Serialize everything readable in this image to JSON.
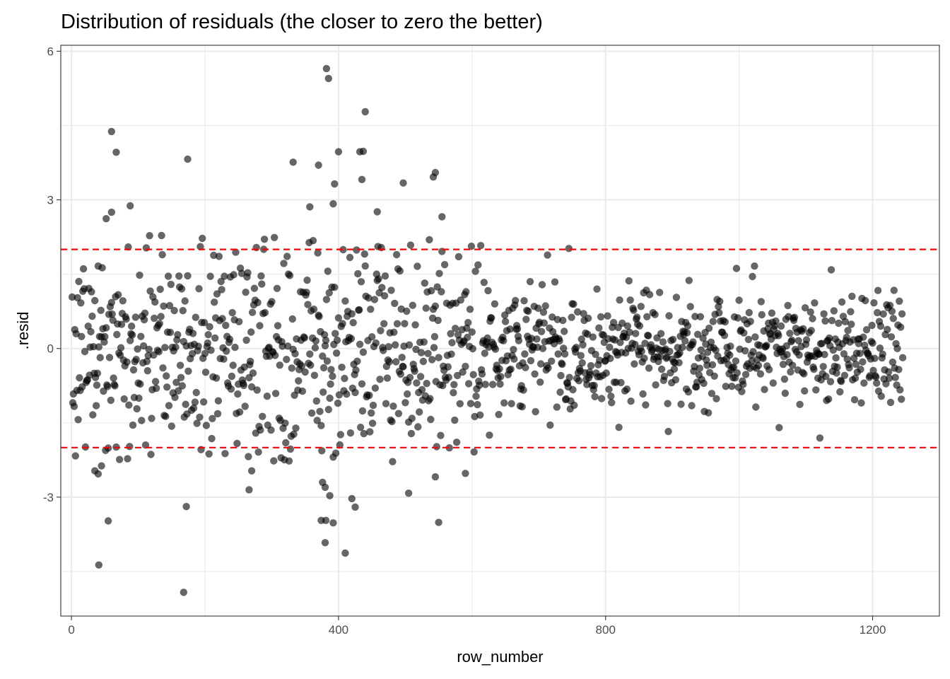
{
  "chart_data": {
    "type": "scatter",
    "title": "Distribution of residuals (the closer to zero the better)",
    "xlabel": "row_number",
    "ylabel": ".resid",
    "xlim": [
      -16,
      1300
    ],
    "ylim": [
      -5.4,
      6.12
    ],
    "x_ticks": [
      0,
      400,
      800,
      1200
    ],
    "x_tick_labels": [
      "0",
      "400",
      "800",
      "1200"
    ],
    "y_ticks": [
      -3,
      0,
      3,
      6
    ],
    "y_tick_labels": [
      "-3",
      "0",
      "3",
      "6"
    ],
    "grid": true,
    "reference_lines": [
      2,
      -2
    ],
    "reference_line_color": "#ff0000",
    "point_color": "#000000",
    "point_opacity": 0.6,
    "outlier_points": [
      {
        "x": 382,
        "y": 5.65
      },
      {
        "x": 385,
        "y": 5.45
      },
      {
        "x": 440,
        "y": 4.78
      },
      {
        "x": 60,
        "y": 4.38
      },
      {
        "x": 67,
        "y": 3.96
      },
      {
        "x": 400,
        "y": 3.97
      },
      {
        "x": 432,
        "y": 3.97
      },
      {
        "x": 437,
        "y": 3.98
      },
      {
        "x": 174,
        "y": 3.82
      },
      {
        "x": 332,
        "y": 3.76
      },
      {
        "x": 370,
        "y": 3.7
      },
      {
        "x": 545,
        "y": 3.55
      },
      {
        "x": 542,
        "y": 3.46
      },
      {
        "x": 435,
        "y": 3.41
      },
      {
        "x": 394,
        "y": 3.32
      },
      {
        "x": 497,
        "y": 3.34
      },
      {
        "x": 392,
        "y": 2.92
      },
      {
        "x": 88,
        "y": 2.88
      },
      {
        "x": 357,
        "y": 2.86
      },
      {
        "x": 458,
        "y": 2.76
      },
      {
        "x": 60,
        "y": 2.75
      },
      {
        "x": 52,
        "y": 2.62
      },
      {
        "x": 555,
        "y": 2.66
      },
      {
        "x": 45,
        "y": -2.37
      },
      {
        "x": 35,
        "y": -2.47
      },
      {
        "x": 40,
        "y": -2.53
      },
      {
        "x": 270,
        "y": -2.47
      },
      {
        "x": 266,
        "y": -2.85
      },
      {
        "x": 590,
        "y": -2.52
      },
      {
        "x": 545,
        "y": -2.59
      },
      {
        "x": 505,
        "y": -2.92
      },
      {
        "x": 376,
        "y": -2.7
      },
      {
        "x": 380,
        "y": -2.8
      },
      {
        "x": 387,
        "y": -2.97
      },
      {
        "x": 420,
        "y": -3.03
      },
      {
        "x": 425,
        "y": -3.2
      },
      {
        "x": 172,
        "y": -3.19
      },
      {
        "x": 55,
        "y": -3.48
      },
      {
        "x": 374,
        "y": -3.47
      },
      {
        "x": 381,
        "y": -3.47
      },
      {
        "x": 392,
        "y": -3.52
      },
      {
        "x": 550,
        "y": -3.51
      },
      {
        "x": 380,
        "y": -3.92
      },
      {
        "x": 410,
        "y": -4.13
      },
      {
        "x": 41,
        "y": -4.37
      },
      {
        "x": 168,
        "y": -4.92
      }
    ]
  }
}
